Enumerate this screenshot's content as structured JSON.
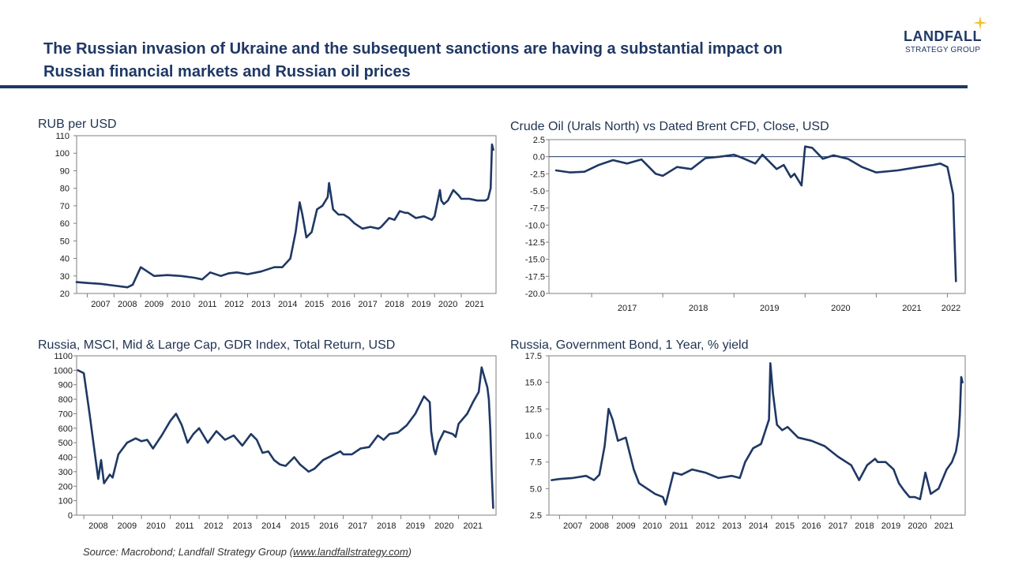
{
  "header": {
    "title_line1": "The Russian invasion of Ukraine and the subsequent sanctions are having a substantial impact on",
    "title_line2": "Russian financial markets and Russian oil prices",
    "logo_name": "LANDFALL",
    "logo_sub": "STRATEGY GROUP",
    "accent": "#1f3864",
    "logo_star_color": "#f2c230"
  },
  "source": {
    "prefix": "Source: Macrobond; Landfall Strategy Group (",
    "link": "www.landfallstrategy.com",
    "suffix": ")"
  },
  "chart_data": [
    {
      "type": "line",
      "title": "RUB per USD",
      "color": "#1f3864",
      "ylim": [
        20,
        110
      ],
      "yticks": [
        20,
        30,
        40,
        50,
        60,
        70,
        80,
        90,
        100,
        110
      ],
      "xlim": [
        2006.6,
        2022.3
      ],
      "xtick_labels": [
        "2007",
        "2008",
        "2009",
        "2010",
        "2011",
        "2012",
        "2013",
        "2014",
        "2015",
        "2016",
        "2017",
        "2018",
        "2019",
        "2020",
        "2021"
      ],
      "series": [
        {
          "x": [
            2006.6,
            2007.0,
            2007.5,
            2008.0,
            2008.5,
            2008.7,
            2009.0,
            2009.2,
            2009.5,
            2010.0,
            2010.5,
            2011.0,
            2011.3,
            2011.6,
            2012.0,
            2012.3,
            2012.6,
            2013.0,
            2013.5,
            2014.0,
            2014.3,
            2014.6,
            2014.8,
            2014.95,
            2015.05,
            2015.2,
            2015.4,
            2015.6,
            2015.8,
            2016.0,
            2016.05,
            2016.2,
            2016.4,
            2016.6,
            2016.8,
            2017.0,
            2017.3,
            2017.6,
            2017.9,
            2018.0,
            2018.3,
            2018.5,
            2018.7,
            2018.9,
            2019.0,
            2019.3,
            2019.6,
            2019.9,
            2020.0,
            2020.2,
            2020.25,
            2020.35,
            2020.5,
            2020.7,
            2020.9,
            2021.0,
            2021.3,
            2021.6,
            2021.9,
            2022.0,
            2022.05,
            2022.1,
            2022.15,
            2022.2
          ],
          "values": [
            26.5,
            26,
            25.5,
            24.5,
            23.5,
            25,
            35,
            33,
            30,
            30.5,
            30,
            29,
            28,
            32,
            30,
            31.5,
            32,
            31,
            32.5,
            35,
            35,
            40,
            55,
            72,
            65,
            52,
            55,
            68,
            70,
            75,
            83,
            68,
            65,
            65,
            63,
            60,
            57,
            58,
            57,
            58,
            63,
            62,
            67,
            66,
            66,
            63,
            64,
            62,
            64,
            79,
            73,
            71,
            73,
            79,
            76,
            74,
            74,
            73,
            73,
            74,
            77,
            80,
            105,
            102
          ]
        }
      ]
    },
    {
      "type": "line",
      "title": "Crude Oil (Urals North) vs Dated Brent CFD, Close, USD",
      "color": "#1f3864",
      "ylim": [
        -20,
        2.5
      ],
      "yticks": [
        2.5,
        0.0,
        -2.5,
        -5.0,
        -7.5,
        -10.0,
        -12.5,
        -15.0,
        -17.5,
        -20.0
      ],
      "ytick_labels": [
        "2.5",
        "0.0",
        "-2.5",
        "-5.0",
        "-7.5",
        "-10.0",
        "-12.5",
        "-15.0",
        "-17.5",
        "-20.0"
      ],
      "zero_line": true,
      "xlim": [
        2016.4,
        2022.25
      ],
      "xtick_labels": [
        "2017",
        "2018",
        "2019",
        "2020",
        "2021",
        "2022"
      ],
      "series": [
        {
          "x": [
            2016.5,
            2016.7,
            2016.9,
            2017.1,
            2017.3,
            2017.5,
            2017.7,
            2017.9,
            2018.0,
            2018.2,
            2018.4,
            2018.6,
            2018.8,
            2019.0,
            2019.1,
            2019.3,
            2019.4,
            2019.6,
            2019.7,
            2019.8,
            2019.85,
            2019.95,
            2020.0,
            2020.1,
            2020.25,
            2020.4,
            2020.6,
            2020.8,
            2021.0,
            2021.3,
            2021.6,
            2021.8,
            2021.9,
            2022.0,
            2022.05,
            2022.08,
            2022.1,
            2022.12
          ],
          "values": [
            -2,
            -2.3,
            -2.2,
            -1.2,
            -0.5,
            -1.0,
            -0.4,
            -2.5,
            -2.8,
            -1.5,
            -1.8,
            -0.2,
            0.0,
            0.3,
            -0.1,
            -1.0,
            0.3,
            -1.8,
            -1.2,
            -3.0,
            -2.5,
            -4.2,
            1.5,
            1.3,
            -0.3,
            0.2,
            -0.3,
            -1.5,
            -2.3,
            -2.0,
            -1.5,
            -1.2,
            -1.0,
            -1.5,
            -4.0,
            -5.5,
            -12.0,
            -18.2
          ]
        }
      ]
    },
    {
      "type": "line",
      "title": "Russia, MSCI, Mid & Large Cap, GDR Index, Total Return, USD",
      "color": "#1f3864",
      "ylim": [
        0,
        1100
      ],
      "yticks": [
        0,
        100,
        200,
        300,
        400,
        500,
        600,
        700,
        800,
        900,
        1000,
        1100
      ],
      "xlim": [
        2007.75,
        2022.3
      ],
      "xtick_labels": [
        "2008",
        "2009",
        "2010",
        "2011",
        "2012",
        "2013",
        "2014",
        "2015",
        "2016",
        "2017",
        "2018",
        "2019",
        "2020",
        "2021"
      ],
      "series": [
        {
          "x": [
            2007.8,
            2008.0,
            2008.2,
            2008.4,
            2008.5,
            2008.6,
            2008.7,
            2008.9,
            2009.0,
            2009.2,
            2009.5,
            2009.8,
            2010.0,
            2010.2,
            2010.4,
            2010.7,
            2011.0,
            2011.2,
            2011.4,
            2011.6,
            2011.8,
            2012.0,
            2012.3,
            2012.6,
            2012.9,
            2013.2,
            2013.5,
            2013.8,
            2014.0,
            2014.2,
            2014.4,
            2014.6,
            2014.8,
            2015.0,
            2015.3,
            2015.5,
            2015.8,
            2016.0,
            2016.3,
            2016.6,
            2016.9,
            2017.0,
            2017.3,
            2017.6,
            2017.9,
            2018.2,
            2018.4,
            2018.6,
            2018.9,
            2019.2,
            2019.5,
            2019.8,
            2020.0,
            2020.05,
            2020.15,
            2020.2,
            2020.3,
            2020.5,
            2020.8,
            2020.9,
            2021.0,
            2021.3,
            2021.5,
            2021.7,
            2021.8,
            2021.9,
            2022.0,
            2022.05,
            2022.1,
            2022.15,
            2022.2
          ],
          "values": [
            1000,
            980,
            700,
            400,
            250,
            380,
            220,
            280,
            260,
            420,
            500,
            530,
            510,
            520,
            460,
            550,
            650,
            700,
            620,
            500,
            560,
            600,
            500,
            580,
            520,
            550,
            480,
            560,
            520,
            430,
            440,
            380,
            350,
            340,
            400,
            350,
            300,
            320,
            380,
            410,
            440,
            420,
            420,
            460,
            470,
            550,
            520,
            560,
            570,
            620,
            700,
            820,
            780,
            580,
            450,
            420,
            500,
            580,
            560,
            540,
            630,
            700,
            780,
            850,
            1020,
            950,
            880,
            800,
            600,
            300,
            50
          ]
        }
      ]
    },
    {
      "type": "line",
      "title": "Russia, Government Bond, 1 Year, % yield",
      "color": "#1f3864",
      "ylim": [
        2.5,
        17.5
      ],
      "yticks": [
        2.5,
        5.0,
        7.5,
        10.0,
        12.5,
        15.0,
        17.5
      ],
      "ytick_labels": [
        "2.5",
        "5.0",
        "7.5",
        "10.0",
        "12.5",
        "15.0",
        "17.5"
      ],
      "xlim": [
        2006.6,
        2022.3
      ],
      "xtick_labels": [
        "2007",
        "2008",
        "2009",
        "2010",
        "2011",
        "2012",
        "2013",
        "2014",
        "2015",
        "2016",
        "2017",
        "2018",
        "2019",
        "2020",
        "2021"
      ],
      "series": [
        {
          "x": [
            2006.7,
            2007.0,
            2007.5,
            2008.0,
            2008.3,
            2008.5,
            2008.7,
            2008.85,
            2009.0,
            2009.2,
            2009.5,
            2009.8,
            2010.0,
            2010.3,
            2010.6,
            2010.9,
            2011.0,
            2011.3,
            2011.6,
            2012.0,
            2012.5,
            2013.0,
            2013.5,
            2013.8,
            2014.0,
            2014.3,
            2014.6,
            2014.9,
            2014.95,
            2015.05,
            2015.2,
            2015.4,
            2015.6,
            2016.0,
            2016.5,
            2017.0,
            2017.5,
            2018.0,
            2018.3,
            2018.6,
            2018.9,
            2019.0,
            2019.3,
            2019.6,
            2019.8,
            2020.0,
            2020.2,
            2020.4,
            2020.6,
            2020.8,
            2021.0,
            2021.3,
            2021.6,
            2021.8,
            2021.95,
            2022.05,
            2022.1,
            2022.15,
            2022.2
          ],
          "values": [
            5.8,
            5.9,
            6.0,
            6.2,
            5.8,
            6.3,
            9.0,
            12.5,
            11.5,
            9.5,
            9.8,
            6.8,
            5.5,
            5.0,
            4.5,
            4.2,
            3.5,
            6.5,
            6.3,
            6.8,
            6.5,
            6.0,
            6.2,
            6.0,
            7.5,
            8.8,
            9.2,
            11.5,
            16.8,
            14.0,
            11.0,
            10.5,
            10.8,
            9.8,
            9.5,
            9.0,
            8.0,
            7.2,
            5.8,
            7.2,
            7.8,
            7.5,
            7.5,
            6.8,
            5.5,
            4.8,
            4.2,
            4.2,
            4.0,
            6.5,
            4.5,
            5.0,
            6.8,
            7.5,
            8.5,
            10.0,
            12.0,
            15.5,
            15.0
          ]
        }
      ]
    }
  ]
}
